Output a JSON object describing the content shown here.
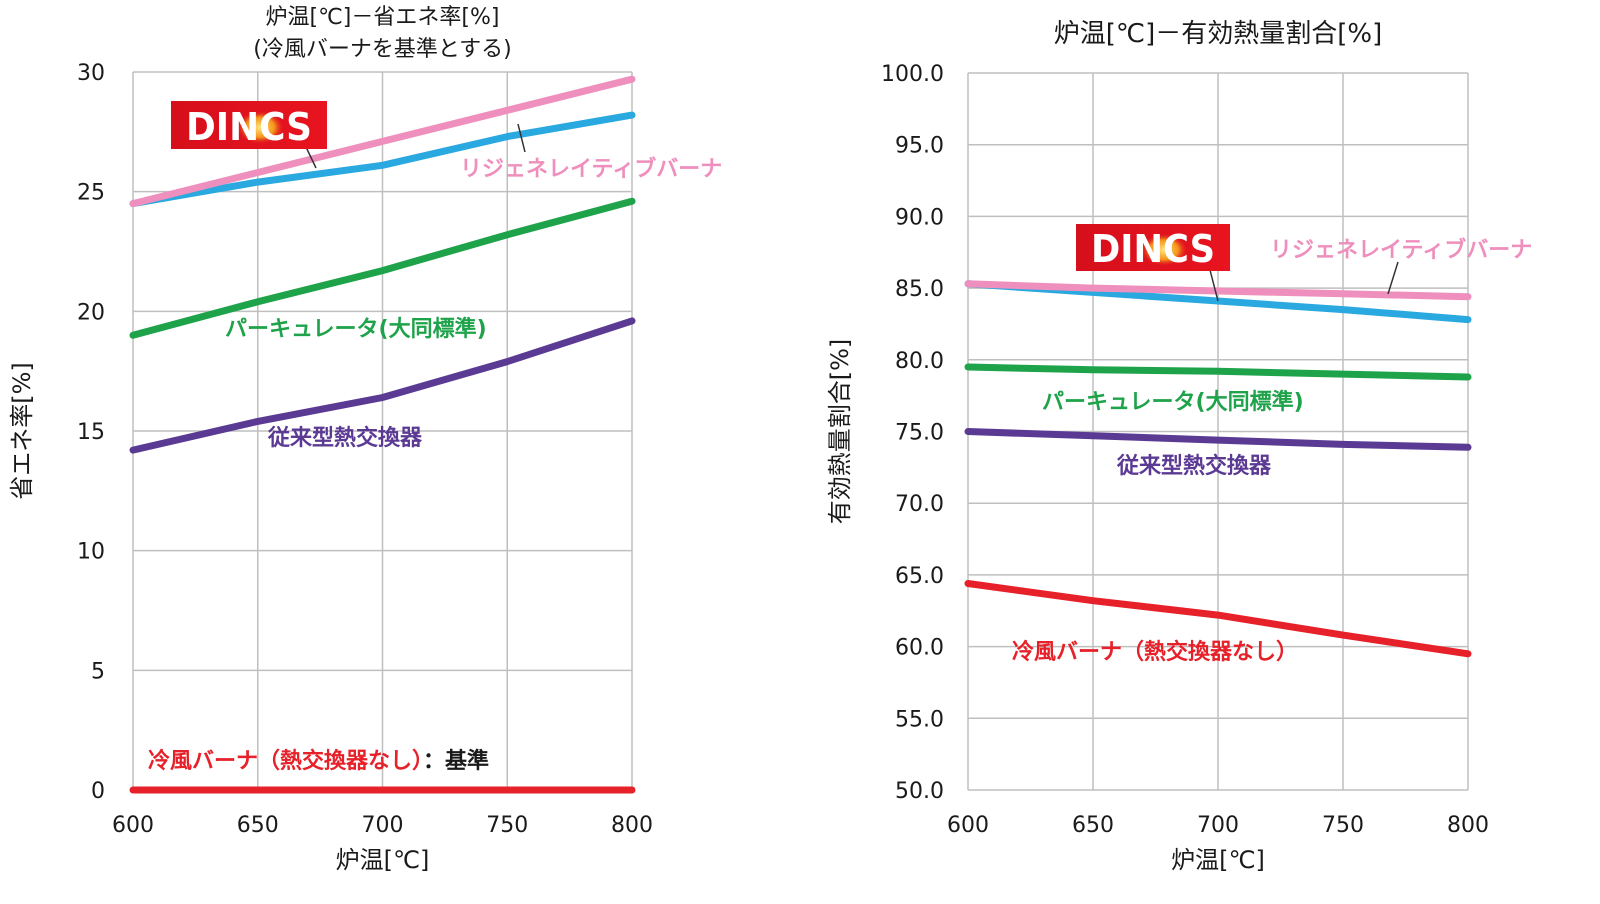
{
  "chart_data": [
    {
      "type": "line",
      "title": "炉温[℃]－省エネ率[%]",
      "subtitle": "(冷風バーナを基準とする)",
      "xlabel": "炉温[℃]",
      "ylabel": "省エネ率[%]",
      "x": [
        600,
        650,
        700,
        750,
        800
      ],
      "x_ticks": [
        "600",
        "650",
        "700",
        "750",
        "800"
      ],
      "y_ticks": [
        "0",
        "5",
        "10",
        "15",
        "20",
        "25",
        "30"
      ],
      "xlim": [
        600,
        800
      ],
      "ylim": [
        0,
        30
      ],
      "grid": true,
      "series": [
        {
          "name": "リジェネレイティブバーナ",
          "color": "#ee8fbd",
          "values": [
            24.5,
            25.8,
            27.1,
            28.4,
            29.7
          ]
        },
        {
          "name": "DINCS",
          "color": "#2aa8e0",
          "values": [
            24.5,
            25.4,
            26.1,
            27.3,
            28.2
          ]
        },
        {
          "name": "パーキュレータ(大同標準)",
          "color": "#1ea34a",
          "values": [
            19.0,
            20.4,
            21.7,
            23.2,
            24.6
          ]
        },
        {
          "name": "従来型熱交換器",
          "color": "#5b3a94",
          "values": [
            14.2,
            15.4,
            16.4,
            17.9,
            19.6
          ]
        },
        {
          "name": "冷風バーナ（熱交換器なし）",
          "suffix": "：基準",
          "color": "#e62129",
          "values": [
            0,
            0,
            0,
            0,
            0
          ]
        }
      ]
    },
    {
      "type": "line",
      "title": "炉温[℃]－有効熱量割合[%]",
      "xlabel": "炉温[℃]",
      "ylabel": "有効熱量割合[%]",
      "x": [
        600,
        650,
        700,
        750,
        800
      ],
      "x_ticks": [
        "600",
        "650",
        "700",
        "750",
        "800"
      ],
      "y_ticks": [
        "50.0",
        "55.0",
        "60.0",
        "65.0",
        "70.0",
        "75.0",
        "80.0",
        "85.0",
        "90.0",
        "95.0",
        "100.0"
      ],
      "xlim": [
        600,
        800
      ],
      "ylim": [
        50,
        100
      ],
      "grid": true,
      "series": [
        {
          "name": "リジェネレイティブバーナ",
          "color": "#ee8fbd",
          "values": [
            85.3,
            85.0,
            84.8,
            84.6,
            84.4
          ]
        },
        {
          "name": "DINCS",
          "color": "#2aa8e0",
          "values": [
            85.3,
            84.7,
            84.1,
            83.5,
            82.8
          ]
        },
        {
          "name": "パーキュレータ(大同標準)",
          "color": "#1ea34a",
          "values": [
            79.5,
            79.3,
            79.2,
            79.0,
            78.8
          ]
        },
        {
          "name": "従来型熱交換器",
          "color": "#5b3a94",
          "values": [
            75.0,
            74.7,
            74.4,
            74.1,
            73.9
          ]
        },
        {
          "name": "冷風バーナ（熱交換器なし）",
          "color": "#e62129",
          "values": [
            64.4,
            63.2,
            62.2,
            60.8,
            59.5
          ]
        }
      ]
    }
  ],
  "logo_text": "DINCS"
}
